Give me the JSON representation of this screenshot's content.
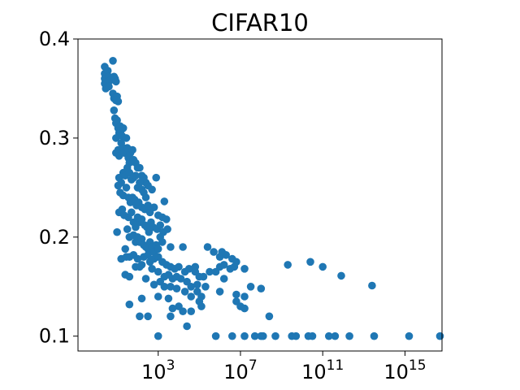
{
  "chart_data": {
    "type": "scatter",
    "title": "CIFAR10",
    "xlabel": "",
    "ylabel": "",
    "xscale": "log",
    "xlim_exponent": [
      -0.9,
      16.8
    ],
    "ylim": [
      0.085,
      0.4
    ],
    "grid": false,
    "marker_color": "#1f77b4",
    "y_ticks": [
      {
        "value": 0.1,
        "label": "0.1"
      },
      {
        "value": 0.2,
        "label": "0.2"
      },
      {
        "value": 0.3,
        "label": "0.3"
      },
      {
        "value": 0.4,
        "label": "0.4"
      }
    ],
    "x_ticks": [
      {
        "exponent": 3,
        "base": "10",
        "power": "3"
      },
      {
        "exponent": 7,
        "base": "10",
        "power": "7"
      },
      {
        "exponent": 11,
        "base": "10",
        "power": "11"
      },
      {
        "exponent": 15,
        "base": "10",
        "power": "15"
      }
    ],
    "points": [
      [
        0.4,
        0.372
      ],
      [
        0.4,
        0.365
      ],
      [
        0.4,
        0.36
      ],
      [
        0.4,
        0.355
      ],
      [
        0.45,
        0.35
      ],
      [
        0.55,
        0.368
      ],
      [
        0.6,
        0.362
      ],
      [
        0.65,
        0.358
      ],
      [
        0.6,
        0.352
      ],
      [
        0.8,
        0.378
      ],
      [
        0.85,
        0.362
      ],
      [
        0.9,
        0.36
      ],
      [
        0.95,
        0.357
      ],
      [
        0.8,
        0.345
      ],
      [
        0.85,
        0.34
      ],
      [
        1.0,
        0.342
      ],
      [
        1.05,
        0.337
      ],
      [
        0.95,
        0.338
      ],
      [
        0.85,
        0.328
      ],
      [
        0.9,
        0.32
      ],
      [
        0.95,
        0.315
      ],
      [
        1.0,
        0.318
      ],
      [
        1.05,
        0.31
      ],
      [
        1.1,
        0.305
      ],
      [
        0.95,
        0.3
      ],
      [
        1.15,
        0.312
      ],
      [
        1.2,
        0.308
      ],
      [
        1.25,
        0.302
      ],
      [
        1.3,
        0.31
      ],
      [
        0.95,
        0.285
      ],
      [
        1.05,
        0.288
      ],
      [
        1.1,
        0.282
      ],
      [
        1.2,
        0.295
      ],
      [
        1.3,
        0.29
      ],
      [
        1.35,
        0.285
      ],
      [
        1.45,
        0.3
      ],
      [
        1.5,
        0.29
      ],
      [
        1.55,
        0.28
      ],
      [
        1.6,
        0.275
      ],
      [
        1.65,
        0.285
      ],
      [
        1.75,
        0.288
      ],
      [
        1.8,
        0.278
      ],
      [
        1.9,
        0.275
      ],
      [
        2.0,
        0.27
      ],
      [
        2.1,
        0.27
      ],
      [
        2.2,
        0.262
      ],
      [
        2.3,
        0.26
      ],
      [
        2.4,
        0.255
      ],
      [
        1.1,
        0.26
      ],
      [
        1.2,
        0.255
      ],
      [
        1.3,
        0.265
      ],
      [
        1.4,
        0.262
      ],
      [
        1.5,
        0.27
      ],
      [
        1.6,
        0.265
      ],
      [
        1.7,
        0.258
      ],
      [
        1.8,
        0.26
      ],
      [
        1.9,
        0.262
      ],
      [
        2.0,
        0.25
      ],
      [
        2.1,
        0.255
      ],
      [
        2.2,
        0.248
      ],
      [
        2.3,
        0.245
      ],
      [
        2.4,
        0.24
      ],
      [
        2.5,
        0.252
      ],
      [
        2.7,
        0.248
      ],
      [
        2.9,
        0.26
      ],
      [
        1.05,
        0.252
      ],
      [
        1.15,
        0.245
      ],
      [
        1.3,
        0.242
      ],
      [
        1.45,
        0.25
      ],
      [
        1.55,
        0.24
      ],
      [
        1.65,
        0.235
      ],
      [
        1.75,
        0.24
      ],
      [
        1.85,
        0.238
      ],
      [
        1.95,
        0.232
      ],
      [
        2.05,
        0.235
      ],
      [
        2.2,
        0.23
      ],
      [
        2.35,
        0.228
      ],
      [
        2.5,
        0.232
      ],
      [
        2.6,
        0.225
      ],
      [
        2.8,
        0.23
      ],
      [
        3.0,
        0.222
      ],
      [
        3.2,
        0.22
      ],
      [
        3.4,
        0.218
      ],
      [
        3.3,
        0.236
      ],
      [
        1.1,
        0.225
      ],
      [
        1.25,
        0.228
      ],
      [
        1.35,
        0.222
      ],
      [
        1.55,
        0.22
      ],
      [
        1.7,
        0.225
      ],
      [
        1.8,
        0.215
      ],
      [
        1.9,
        0.21
      ],
      [
        2.0,
        0.22
      ],
      [
        2.1,
        0.215
      ],
      [
        2.2,
        0.218
      ],
      [
        2.35,
        0.212
      ],
      [
        2.45,
        0.21
      ],
      [
        2.55,
        0.205
      ],
      [
        2.65,
        0.215
      ],
      [
        2.75,
        0.21
      ],
      [
        2.95,
        0.208
      ],
      [
        3.1,
        0.212
      ],
      [
        3.25,
        0.205
      ],
      [
        3.45,
        0.208
      ],
      [
        1.0,
        0.205
      ],
      [
        1.5,
        0.208
      ],
      [
        1.6,
        0.2
      ],
      [
        1.8,
        0.202
      ],
      [
        1.9,
        0.195
      ],
      [
        2.0,
        0.2
      ],
      [
        2.1,
        0.195
      ],
      [
        2.2,
        0.198
      ],
      [
        2.3,
        0.192
      ],
      [
        2.4,
        0.19
      ],
      [
        2.5,
        0.188
      ],
      [
        2.6,
        0.195
      ],
      [
        2.7,
        0.19
      ],
      [
        2.8,
        0.185
      ],
      [
        2.9,
        0.192
      ],
      [
        3.0,
        0.188
      ],
      [
        3.1,
        0.2
      ],
      [
        3.2,
        0.195
      ],
      [
        3.6,
        0.19
      ],
      [
        4.2,
        0.19
      ],
      [
        1.4,
        0.188
      ],
      [
        1.6,
        0.18
      ],
      [
        1.8,
        0.182
      ],
      [
        2.0,
        0.178
      ],
      [
        2.2,
        0.172
      ],
      [
        2.3,
        0.18
      ],
      [
        2.5,
        0.182
      ],
      [
        2.6,
        0.175
      ],
      [
        2.8,
        0.178
      ],
      [
        3.0,
        0.18
      ],
      [
        3.2,
        0.175
      ],
      [
        3.4,
        0.172
      ],
      [
        3.6,
        0.17
      ],
      [
        3.8,
        0.168
      ],
      [
        4.0,
        0.17
      ],
      [
        4.3,
        0.165
      ],
      [
        4.5,
        0.168
      ],
      [
        4.8,
        0.165
      ],
      [
        1.2,
        0.178
      ],
      [
        1.45,
        0.18
      ],
      [
        1.9,
        0.17
      ],
      [
        2.1,
        0.17
      ],
      [
        2.7,
        0.168
      ],
      [
        3.0,
        0.165
      ],
      [
        3.3,
        0.16
      ],
      [
        3.5,
        0.162
      ],
      [
        3.7,
        0.158
      ],
      [
        3.9,
        0.16
      ],
      [
        4.1,
        0.158
      ],
      [
        4.4,
        0.155
      ],
      [
        4.6,
        0.15
      ],
      [
        4.9,
        0.152
      ],
      [
        5.2,
        0.16
      ],
      [
        5.5,
        0.165
      ],
      [
        1.4,
        0.162
      ],
      [
        1.6,
        0.16
      ],
      [
        2.4,
        0.158
      ],
      [
        2.8,
        0.152
      ],
      [
        3.1,
        0.155
      ],
      [
        3.3,
        0.15
      ],
      [
        3.6,
        0.15
      ],
      [
        3.9,
        0.148
      ],
      [
        4.3,
        0.145
      ],
      [
        4.6,
        0.14
      ],
      [
        4.9,
        0.145
      ],
      [
        5.1,
        0.14
      ],
      [
        5.3,
        0.15
      ],
      [
        1.6,
        0.132
      ],
      [
        2.2,
        0.138
      ],
      [
        3.0,
        0.14
      ],
      [
        3.5,
        0.138
      ],
      [
        4.0,
        0.13
      ],
      [
        4.2,
        0.125
      ],
      [
        5.0,
        0.135
      ],
      [
        5.1,
        0.13
      ],
      [
        2.1,
        0.12
      ],
      [
        2.5,
        0.12
      ],
      [
        3.7,
        0.128
      ],
      [
        3.6,
        0.12
      ],
      [
        4.6,
        0.125
      ],
      [
        4.4,
        0.11
      ],
      [
        6.0,
        0.18
      ],
      [
        6.1,
        0.185
      ],
      [
        6.3,
        0.182
      ],
      [
        6.6,
        0.178
      ],
      [
        6.8,
        0.175
      ],
      [
        7.2,
        0.168
      ],
      [
        6.2,
        0.172
      ],
      [
        6.5,
        0.168
      ],
      [
        6.7,
        0.17
      ],
      [
        5.8,
        0.165
      ],
      [
        6.0,
        0.17
      ],
      [
        6.2,
        0.158
      ],
      [
        6.0,
        0.145
      ],
      [
        6.8,
        0.142
      ],
      [
        7.2,
        0.14
      ],
      [
        7.5,
        0.15
      ],
      [
        8.0,
        0.148
      ],
      [
        6.8,
        0.135
      ],
      [
        7.0,
        0.13
      ],
      [
        7.2,
        0.128
      ],
      [
        8.4,
        0.12
      ],
      [
        9.3,
        0.172
      ],
      [
        10.4,
        0.175
      ],
      [
        11.0,
        0.17
      ],
      [
        11.9,
        0.161
      ],
      [
        13.4,
        0.151
      ],
      [
        6.6,
        0.1
      ],
      [
        8.1,
        0.1
      ],
      [
        8.7,
        0.1
      ],
      [
        9.5,
        0.1
      ],
      [
        10.3,
        0.1
      ],
      [
        10.5,
        0.1
      ],
      [
        11.6,
        0.1
      ],
      [
        12.3,
        0.1
      ],
      [
        13.5,
        0.1
      ],
      [
        3.0,
        0.1
      ],
      [
        5.8,
        0.1
      ],
      [
        7.7,
        0.1
      ],
      [
        8.0,
        0.1
      ],
      [
        11.3,
        0.1
      ],
      [
        15.2,
        0.1
      ],
      [
        16.7,
        0.1
      ],
      [
        7.2,
        0.1
      ],
      [
        9.7,
        0.1
      ],
      [
        4.8,
        0.17
      ],
      [
        5.0,
        0.16
      ],
      [
        5.4,
        0.19
      ],
      [
        5.7,
        0.185
      ]
    ]
  }
}
